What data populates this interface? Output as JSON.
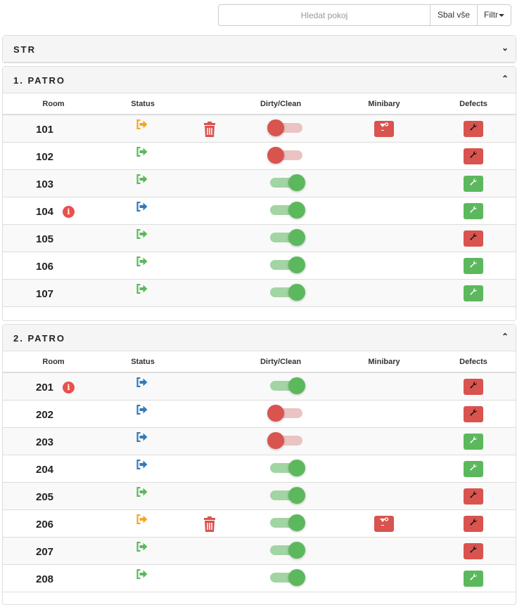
{
  "toolbar": {
    "search_placeholder": "Hledat pokoj",
    "collapse_label": "Sbal vše",
    "filter_label": "Filtr"
  },
  "colors": {
    "orange": "#f5a623",
    "green": "#5cb85c",
    "blue": "#337ab7",
    "red": "#d9534f"
  },
  "columns": {
    "room": "Room",
    "status": "Status",
    "dirty_clean": "Dirty/Clean",
    "minibar": "Minibary",
    "defects": "Defects"
  },
  "sections": [
    {
      "title": "STR",
      "expanded": false,
      "rooms": []
    },
    {
      "title": "1. PATRO",
      "expanded": true,
      "rooms": [
        {
          "room": "101",
          "status": "orange",
          "info": false,
          "trash": true,
          "clean": false,
          "minibar": true,
          "defect": "red"
        },
        {
          "room": "102",
          "status": "green",
          "info": false,
          "trash": false,
          "clean": false,
          "minibar": false,
          "defect": "red"
        },
        {
          "room": "103",
          "status": "green",
          "info": false,
          "trash": false,
          "clean": true,
          "minibar": false,
          "defect": "green"
        },
        {
          "room": "104",
          "status": "blue",
          "info": true,
          "trash": false,
          "clean": true,
          "minibar": false,
          "defect": "green"
        },
        {
          "room": "105",
          "status": "green",
          "info": false,
          "trash": false,
          "clean": true,
          "minibar": false,
          "defect": "red"
        },
        {
          "room": "106",
          "status": "green",
          "info": false,
          "trash": false,
          "clean": true,
          "minibar": false,
          "defect": "green"
        },
        {
          "room": "107",
          "status": "green",
          "info": false,
          "trash": false,
          "clean": true,
          "minibar": false,
          "defect": "green"
        }
      ]
    },
    {
      "title": "2. PATRO",
      "expanded": true,
      "rooms": [
        {
          "room": "201",
          "status": "blue",
          "info": true,
          "trash": false,
          "clean": true,
          "minibar": false,
          "defect": "red"
        },
        {
          "room": "202",
          "status": "blue",
          "info": false,
          "trash": false,
          "clean": false,
          "minibar": false,
          "defect": "red"
        },
        {
          "room": "203",
          "status": "blue",
          "info": false,
          "trash": false,
          "clean": false,
          "minibar": false,
          "defect": "green"
        },
        {
          "room": "204",
          "status": "blue",
          "info": false,
          "trash": false,
          "clean": true,
          "minibar": false,
          "defect": "green"
        },
        {
          "room": "205",
          "status": "green",
          "info": false,
          "trash": false,
          "clean": true,
          "minibar": false,
          "defect": "red"
        },
        {
          "room": "206",
          "status": "orange",
          "info": false,
          "trash": true,
          "clean": true,
          "minibar": true,
          "defect": "red"
        },
        {
          "room": "207",
          "status": "green",
          "info": false,
          "trash": false,
          "clean": true,
          "minibar": false,
          "defect": "red"
        },
        {
          "room": "208",
          "status": "green",
          "info": false,
          "trash": false,
          "clean": true,
          "minibar": false,
          "defect": "green"
        }
      ]
    }
  ]
}
